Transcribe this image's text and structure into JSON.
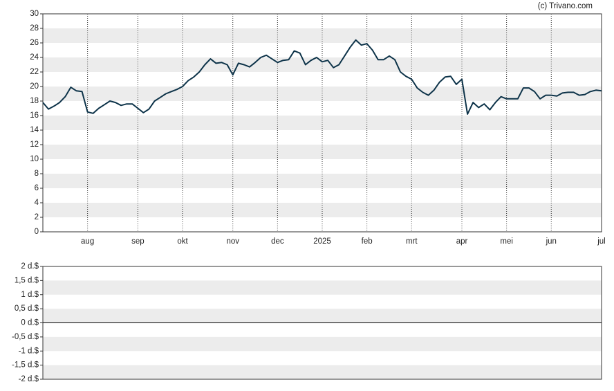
{
  "credit": "(c) Trivano.com",
  "chart_data": [
    {
      "type": "line",
      "color": "#0d3349",
      "categories": [
        "",
        null,
        null,
        null,
        null,
        null,
        null,
        null,
        "aug",
        null,
        null,
        null,
        null,
        null,
        null,
        null,
        null,
        "sep",
        null,
        null,
        null,
        null,
        null,
        null,
        null,
        "okt",
        null,
        null,
        null,
        null,
        null,
        null,
        null,
        null,
        "nov",
        null,
        null,
        null,
        null,
        null,
        null,
        null,
        "dec",
        null,
        null,
        null,
        null,
        null,
        null,
        null,
        "2025",
        null,
        null,
        null,
        null,
        null,
        null,
        null,
        "feb",
        null,
        null,
        null,
        null,
        null,
        null,
        null,
        "mrt",
        null,
        null,
        null,
        null,
        null,
        null,
        null,
        null,
        "apr",
        null,
        null,
        null,
        null,
        null,
        null,
        null,
        "mei",
        null,
        null,
        null,
        null,
        null,
        null,
        null,
        "jun",
        null,
        null,
        null,
        null,
        null,
        null,
        null,
        null,
        "jul"
      ],
      "values": [
        17.8,
        16.9,
        17.3,
        17.8,
        18.6,
        19.9,
        19.4,
        19.3,
        16.5,
        16.3,
        17.0,
        17.5,
        18.0,
        17.8,
        17.4,
        17.6,
        17.6,
        17.0,
        16.4,
        16.9,
        18.0,
        18.5,
        19.0,
        19.3,
        19.6,
        20.0,
        20.8,
        21.3,
        22.0,
        23.0,
        23.8,
        23.2,
        23.3,
        23.0,
        21.6,
        23.2,
        23.0,
        22.7,
        23.3,
        24.0,
        24.3,
        23.8,
        23.3,
        23.6,
        23.7,
        24.9,
        24.6,
        23.0,
        23.6,
        24.0,
        23.4,
        23.6,
        22.6,
        23.0,
        24.2,
        25.4,
        26.4,
        25.7,
        25.9,
        25.0,
        23.7,
        23.7,
        24.2,
        23.7,
        22.0,
        21.4,
        21.0,
        19.8,
        19.2,
        18.8,
        19.5,
        20.6,
        21.3,
        21.4,
        20.3,
        21.0,
        16.2,
        17.8,
        17.1,
        17.6,
        16.8,
        17.8,
        18.6,
        18.3,
        18.3,
        18.3,
        19.8,
        19.8,
        19.3,
        18.3,
        18.8,
        18.8,
        18.7,
        19.1,
        19.2,
        19.2,
        18.8,
        18.9,
        19.3,
        19.5,
        19.4
      ],
      "ylim": [
        0,
        30
      ],
      "yticks": [
        0,
        2,
        4,
        6,
        8,
        10,
        12,
        14,
        16,
        18,
        20,
        22,
        24,
        26,
        28,
        30
      ]
    },
    {
      "type": "bar",
      "ylim": [
        -2,
        2
      ],
      "yticks": [
        {
          "value": -2,
          "label": "-2 d.$"
        },
        {
          "value": -1.5,
          "label": "-1,5 d.$"
        },
        {
          "value": -1,
          "label": "-1 d.$"
        },
        {
          "value": -0.5,
          "label": "-0,5 d.$"
        },
        {
          "value": 0,
          "label": "0 d.$"
        },
        {
          "value": 0.5,
          "label": "0,5 d.$"
        },
        {
          "value": 1,
          "label": "1 d.$"
        },
        {
          "value": 1.5,
          "label": "1,5 d.$"
        },
        {
          "value": 2,
          "label": "2 d.$"
        }
      ]
    }
  ]
}
